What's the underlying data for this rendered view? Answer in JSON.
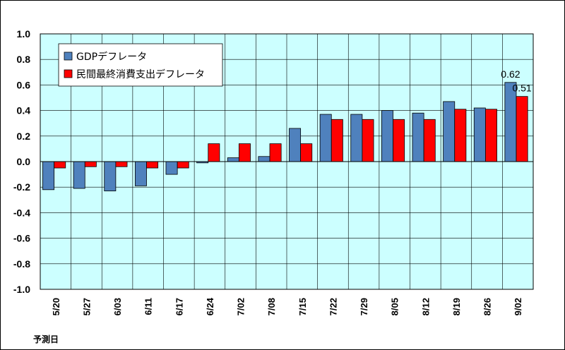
{
  "chart_data": {
    "type": "bar",
    "categories": [
      "5/20",
      "5/27",
      "6/03",
      "6/11",
      "6/17",
      "6/24",
      "7/02",
      "7/08",
      "7/15",
      "7/22",
      "7/29",
      "8/05",
      "8/12",
      "8/19",
      "8/26",
      "9/02"
    ],
    "series": [
      {
        "name": "GDPデフレータ",
        "color": "#4f81bd",
        "values": [
          -0.22,
          -0.21,
          -0.23,
          -0.19,
          -0.1,
          -0.01,
          0.03,
          0.04,
          0.26,
          0.37,
          0.37,
          0.4,
          0.38,
          0.47,
          0.42,
          0.62
        ]
      },
      {
        "name": "民間最終消費支出デフレータ",
        "color": "#ff0000",
        "values": [
          -0.05,
          -0.04,
          -0.04,
          -0.05,
          -0.05,
          0.14,
          0.14,
          0.14,
          0.14,
          0.33,
          0.33,
          0.33,
          0.33,
          0.41,
          0.41,
          0.51
        ]
      }
    ],
    "ylim": [
      -1.0,
      1.0
    ],
    "yticks": [
      "1.0",
      "0.8",
      "0.6",
      "0.4",
      "0.2",
      "0.0",
      "-0.2",
      "-0.4",
      "-0.6",
      "-0.8",
      "-1.0"
    ],
    "xlabel": "予測日",
    "data_labels": [
      {
        "series": 0,
        "index": 15,
        "text": "0.62"
      },
      {
        "series": 1,
        "index": 15,
        "text": "0.51"
      }
    ],
    "legend_position": "top-left",
    "plot_background": "#ccffff",
    "grid": true
  }
}
